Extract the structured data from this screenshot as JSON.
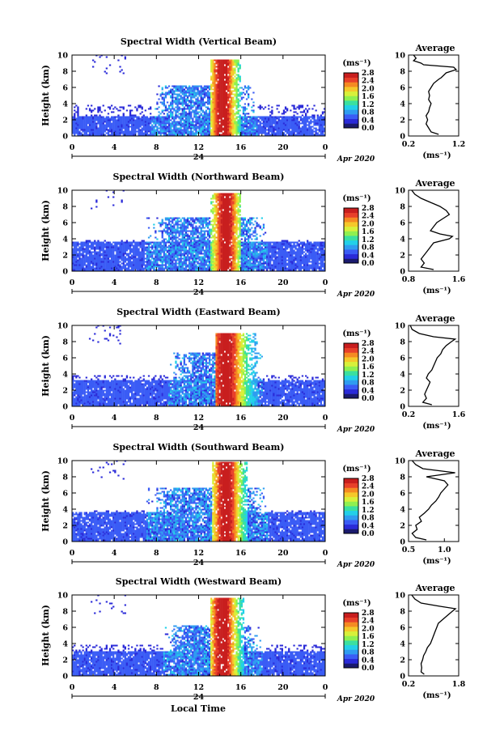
{
  "colors": {
    "palette": [
      "#1a1a6e",
      "#2a2ad8",
      "#3a5cf5",
      "#2f9cf0",
      "#22d0e8",
      "#3ae0a0",
      "#8ff050",
      "#d8f03a",
      "#f5c82a",
      "#f58a22",
      "#e8402a",
      "#c81e1e"
    ],
    "background": "#ffffff",
    "line": "#000000"
  },
  "footer": {
    "xlabel": "Local Time"
  },
  "chart_data": [
    {
      "type": "heatmap",
      "title": "Spectral Width (Vertical Beam)",
      "ylabel": "Height (km)",
      "ylim": [
        0,
        10
      ],
      "yticks": [
        "0",
        "2",
        "4",
        "6",
        "8",
        "10"
      ],
      "xlim": [
        0,
        24
      ],
      "xticks": [
        "0",
        "4",
        "8",
        "12",
        "16",
        "20",
        "0"
      ],
      "day_label": "24",
      "date_label": "Apr 2020",
      "colorbar": {
        "unit": "(ms⁻¹)",
        "range": [
          0.0,
          2.8
        ],
        "ticks": [
          "2.8",
          "2.4",
          "2.0",
          "1.6",
          "1.2",
          "0.8",
          "0.4",
          "0.0"
        ]
      },
      "shape": {
        "base": 2.3,
        "lower_top": 6.2,
        "lower_start": 7.5,
        "lower_end": 17.5,
        "core_top": 9.3,
        "core_start": 13.0,
        "core_end": 16.0,
        "core_peak": 14.2
      },
      "profile": {
        "title": "Average",
        "xlim": [
          0.2,
          1.2
        ],
        "xticks": [
          "0.2",
          "1.2"
        ],
        "xlabel": "(ms⁻¹)",
        "heights": [
          0.2,
          0.5,
          1.0,
          1.5,
          2.0,
          2.5,
          3.0,
          3.5,
          4.0,
          4.5,
          5.0,
          5.5,
          6.0,
          6.5,
          7.0,
          7.2,
          7.5,
          7.8,
          8.0,
          8.2,
          8.5,
          8.8,
          9.0,
          9.3,
          9.6,
          10.0
        ],
        "values": [
          0.8,
          0.65,
          0.6,
          0.55,
          0.58,
          0.55,
          0.6,
          0.62,
          0.65,
          0.6,
          0.62,
          0.6,
          0.65,
          0.7,
          0.8,
          0.85,
          0.9,
          0.95,
          1.05,
          1.15,
          1.1,
          0.5,
          0.45,
          0.3,
          0.35,
          0.3
        ]
      }
    },
    {
      "type": "heatmap",
      "title": "Spectral Width (Northward Beam)",
      "ylabel": "Height (km)",
      "ylim": [
        0,
        10
      ],
      "yticks": [
        "0",
        "2",
        "4",
        "6",
        "8",
        "10"
      ],
      "xlim": [
        0,
        24
      ],
      "xticks": [
        "0",
        "4",
        "8",
        "12",
        "16",
        "20",
        "0"
      ],
      "day_label": "24",
      "date_label": "Apr 2020",
      "colorbar": {
        "unit": "(ms⁻¹)",
        "range": [
          0.0,
          2.8
        ],
        "ticks": [
          "2.8",
          "2.4",
          "2.0",
          "1.6",
          "1.2",
          "0.8",
          "0.4",
          "0.0"
        ]
      },
      "shape": {
        "base": 3.6,
        "lower_top": 6.6,
        "lower_start": 7.0,
        "lower_end": 18.5,
        "core_top": 9.5,
        "core_start": 13.0,
        "core_end": 16.0,
        "core_peak": 14.5
      },
      "profile": {
        "title": "Average",
        "xlim": [
          0.8,
          1.6
        ],
        "xticks": [
          "0.8",
          "1.6"
        ],
        "xlabel": "(ms⁻¹)",
        "heights": [
          0.2,
          0.5,
          1.0,
          1.5,
          2.0,
          2.5,
          3.0,
          3.5,
          4.0,
          4.3,
          4.6,
          5.0,
          5.5,
          6.0,
          6.5,
          7.0,
          7.5,
          8.0,
          8.5,
          9.0,
          9.5,
          10.0
        ],
        "values": [
          1.2,
          1.0,
          1.05,
          1.0,
          1.05,
          1.1,
          1.15,
          1.2,
          1.45,
          1.5,
          1.3,
          1.15,
          1.2,
          1.25,
          1.35,
          1.45,
          1.4,
          1.3,
          1.15,
          1.0,
          0.9,
          0.85
        ]
      }
    },
    {
      "type": "heatmap",
      "title": "Spectral Width (Eastward Beam)",
      "ylabel": "Height (km)",
      "ylim": [
        0,
        10
      ],
      "yticks": [
        "0",
        "2",
        "4",
        "6",
        "8",
        "10"
      ],
      "xlim": [
        0,
        24
      ],
      "xticks": [
        "0",
        "4",
        "8",
        "12",
        "16",
        "20",
        "0"
      ],
      "day_label": "24",
      "date_label": "Apr 2020",
      "colorbar": {
        "unit": "(ms⁻¹)",
        "range": [
          0.0,
          2.8
        ],
        "ticks": [
          "2.8",
          "2.4",
          "2.0",
          "1.6",
          "1.2",
          "0.8",
          "0.4",
          "0.0"
        ]
      },
      "shape": {
        "base": 3.2,
        "lower_top": 6.5,
        "lower_start": 9.0,
        "lower_end": 18.0,
        "core_top": 9.0,
        "core_start": 13.5,
        "core_end": 17.5,
        "core_peak": 14.5
      },
      "profile": {
        "title": "Average",
        "xlim": [
          0.2,
          1.6
        ],
        "xticks": [
          "0.2",
          "1.6"
        ],
        "xlabel": "(ms⁻¹)",
        "heights": [
          0.2,
          0.5,
          1.0,
          1.5,
          2.0,
          2.5,
          3.0,
          3.5,
          4.0,
          4.5,
          5.0,
          5.5,
          6.0,
          6.5,
          7.0,
          7.5,
          8.0,
          8.3,
          8.6,
          9.0,
          9.5,
          10.0
        ],
        "values": [
          0.85,
          0.6,
          0.7,
          0.65,
          0.7,
          0.75,
          0.8,
          0.7,
          0.75,
          0.85,
          0.9,
          0.95,
          1.0,
          1.1,
          1.15,
          1.25,
          1.4,
          1.5,
          0.9,
          0.5,
          0.3,
          0.25
        ]
      }
    },
    {
      "type": "heatmap",
      "title": "Spectral Width (Southward Beam)",
      "ylabel": "Height (km)",
      "ylim": [
        0,
        10
      ],
      "yticks": [
        "0",
        "2",
        "4",
        "6",
        "8",
        "10"
      ],
      "xlim": [
        0,
        24
      ],
      "xticks": [
        "0",
        "4",
        "8",
        "12",
        "16",
        "20",
        "0"
      ],
      "day_label": "24",
      "date_label": "Apr 2020",
      "colorbar": {
        "unit": "(ms⁻¹)",
        "range": [
          0.0,
          2.8
        ],
        "ticks": [
          "2.8",
          "2.4",
          "2.0",
          "1.6",
          "1.2",
          "0.8",
          "0.4",
          "0.0"
        ]
      },
      "shape": {
        "base": 3.6,
        "lower_top": 6.6,
        "lower_start": 7.0,
        "lower_end": 18.5,
        "core_top": 9.8,
        "core_start": 13.2,
        "core_end": 16.5,
        "core_peak": 14.5
      },
      "profile": {
        "title": "Average",
        "xlim": [
          0.5,
          1.2
        ],
        "xticks": [
          "0.5",
          "1.0"
        ],
        "xlabel": "(ms⁻¹)",
        "heights": [
          0.2,
          0.5,
          1.0,
          1.5,
          2.0,
          2.5,
          3.0,
          3.5,
          4.0,
          4.5,
          5.0,
          5.5,
          6.0,
          6.5,
          7.0,
          7.5,
          8.0,
          8.5,
          9.0,
          9.5,
          10.0
        ],
        "values": [
          0.75,
          0.6,
          0.55,
          0.62,
          0.6,
          0.68,
          0.65,
          0.72,
          0.78,
          0.82,
          0.88,
          0.92,
          0.95,
          1.0,
          1.05,
          1.0,
          0.75,
          1.15,
          0.7,
          0.6,
          0.55
        ]
      }
    },
    {
      "type": "heatmap",
      "title": "Spectral Width (Westward Beam)",
      "ylabel": "Height (km)",
      "ylim": [
        0,
        10
      ],
      "yticks": [
        "0",
        "2",
        "4",
        "6",
        "8",
        "10"
      ],
      "xlim": [
        0,
        24
      ],
      "xticks": [
        "0",
        "4",
        "8",
        "12",
        "16",
        "20",
        "0"
      ],
      "day_label": "24",
      "date_label": "Apr 2020",
      "colorbar": {
        "unit": "(ms⁻¹)",
        "range": [
          0.0,
          2.8
        ],
        "ticks": [
          "2.8",
          "2.4",
          "2.0",
          "1.6",
          "1.2",
          "0.8",
          "0.4",
          "0.0"
        ]
      },
      "shape": {
        "base": 3.0,
        "lower_top": 6.2,
        "lower_start": 8.5,
        "lower_end": 18.0,
        "core_top": 9.5,
        "core_start": 13.0,
        "core_end": 16.2,
        "core_peak": 14.2
      },
      "profile": {
        "title": "Average",
        "xlim": [
          0.2,
          1.8
        ],
        "xticks": [
          "0.2",
          "1.8"
        ],
        "xlabel": "(ms⁻¹)",
        "heights": [
          0.2,
          0.5,
          1.0,
          1.5,
          2.0,
          2.5,
          3.0,
          3.5,
          4.0,
          4.5,
          5.0,
          5.5,
          6.0,
          6.5,
          7.0,
          7.5,
          8.0,
          8.3,
          8.6,
          9.0,
          9.5,
          10.0
        ],
        "values": [
          0.7,
          0.6,
          0.62,
          0.6,
          0.65,
          0.68,
          0.75,
          0.8,
          0.9,
          0.95,
          1.0,
          1.05,
          1.1,
          1.15,
          1.3,
          1.45,
          1.6,
          1.7,
          1.2,
          0.6,
          0.4,
          0.3
        ]
      }
    }
  ]
}
